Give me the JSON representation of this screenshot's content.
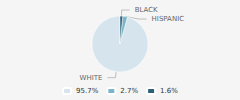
{
  "chart_data": {
    "type": "pie",
    "categories": [
      "WHITE",
      "HISPANIC",
      "BLACK"
    ],
    "values": [
      95.7,
      2.7,
      1.6
    ],
    "value_labels": [
      "95.7%",
      "2.7%",
      "1.6%"
    ],
    "colors": [
      "#d6e4ed",
      "#7ab5c8",
      "#2e5f7a"
    ],
    "legend": "bottom"
  }
}
